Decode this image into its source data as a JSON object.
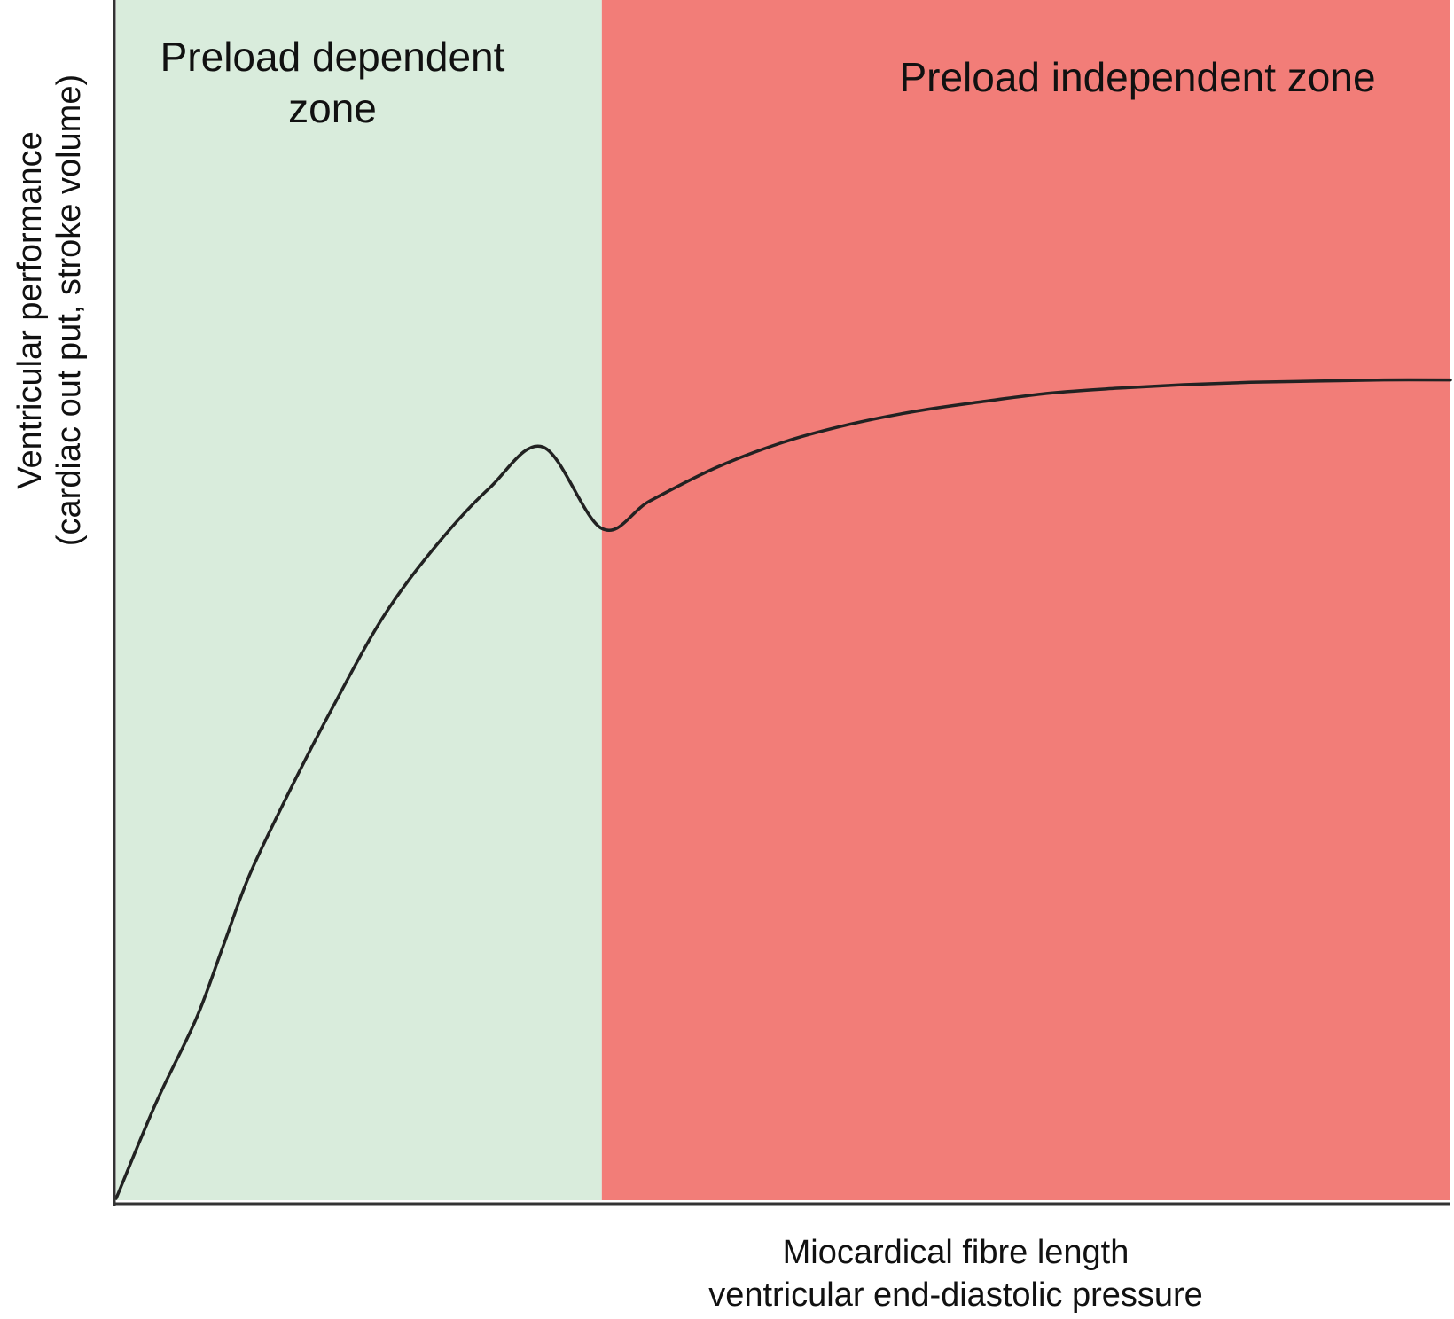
{
  "chart_data": {
    "type": "line",
    "title": "",
    "xlabel_lines": [
      "Miocardical fibre length",
      "ventricular end-diastolic pressure"
    ],
    "ylabel_lines": [
      "Ventricular performance",
      "(cardiac out put, stroke volume)"
    ],
    "xlim": [
      0,
      100
    ],
    "ylim": [
      0,
      100
    ],
    "grid": false,
    "zones": [
      {
        "label_lines": [
          "Preload dependent",
          "zone"
        ],
        "x_start": 0,
        "x_end": 36.4,
        "color": "#d9ecdc"
      },
      {
        "label_lines": [
          "Preload independent zone"
        ],
        "x_start": 36.4,
        "x_end": 100,
        "color": "#f27d78"
      }
    ],
    "series": [
      {
        "color": "#222222",
        "x": [
          0,
          3,
          6,
          8,
          10,
          13,
          16,
          20,
          24,
          28,
          32,
          36.4,
          40,
          45,
          50,
          55,
          60,
          65,
          70,
          75,
          80,
          85,
          90,
          95,
          100
        ],
        "y": [
          0,
          8,
          15,
          21,
          27,
          34,
          40.5,
          48.5,
          54.5,
          59.3,
          62.7,
          55.9,
          58.2,
          61,
          63.1,
          64.6,
          65.7,
          66.5,
          67.2,
          67.6,
          67.9,
          68.1,
          68.2,
          68.3,
          68.3
        ]
      }
    ]
  }
}
